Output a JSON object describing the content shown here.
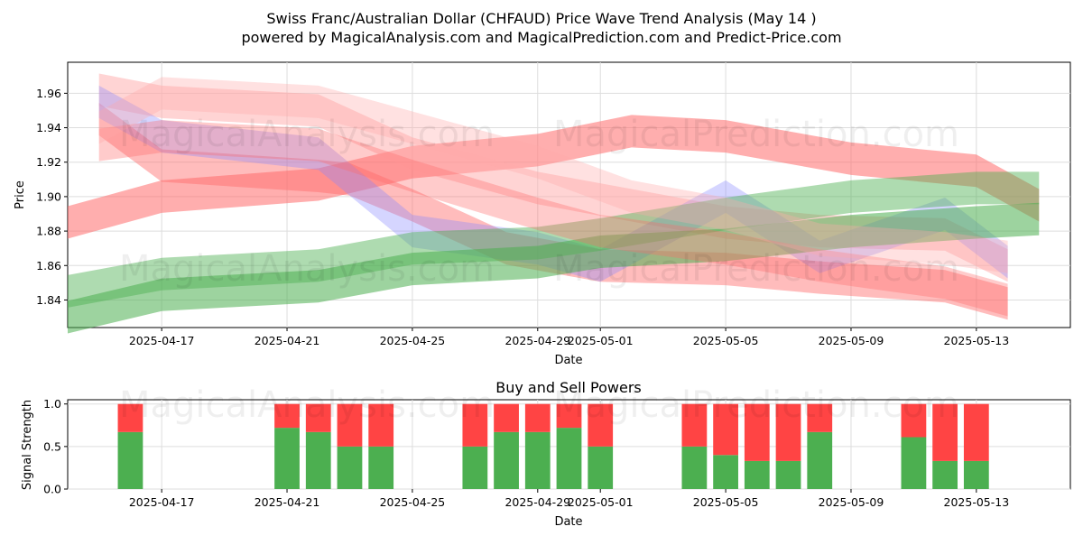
{
  "title_line1": "Swiss Franc/Australian Dollar (CHFAUD) Price Wave Trend Analysis (May 14 )",
  "title_line2": "powered by MagicalAnalysis.com and MagicalPrediction.com and Predict-Price.com",
  "watermarks": [
    "MagicalAnalysis.com",
    "MagicalPrediction.com"
  ],
  "colors": {
    "red": "#ff6b6b",
    "green": "#4caf50",
    "blue": "#8888ff",
    "pink": "#ffaaaa"
  },
  "chart_data": [
    {
      "type": "area",
      "xlabel": "Date",
      "ylabel": "Price",
      "ylim": [
        1.824,
        1.978
      ],
      "yticks": [
        1.84,
        1.86,
        1.88,
        1.9,
        1.92,
        1.94,
        1.96
      ],
      "ytick_labels": [
        "1.84",
        "1.86",
        "1.88",
        "1.90",
        "1.92",
        "1.94",
        "1.96"
      ],
      "xlim": [
        "2025-04-14",
        "2025-05-16"
      ],
      "xticks": [
        "2025-04-17",
        "2025-04-21",
        "2025-04-25",
        "2025-04-29",
        "2025-05-01",
        "2025-05-05",
        "2025-05-09",
        "2025-05-13"
      ],
      "grid": true,
      "series": [
        {
          "color": "red",
          "opacity": 0.55,
          "x": [
            "2025-04-14",
            "2025-04-17",
            "2025-04-22",
            "2025-04-25",
            "2025-04-29",
            "2025-05-02",
            "2025-05-05",
            "2025-05-09",
            "2025-05-13",
            "2025-05-15"
          ],
          "y": [
            1.885,
            1.9,
            1.907,
            1.92,
            1.927,
            1.938,
            1.935,
            1.922,
            1.915,
            1.895
          ]
        },
        {
          "color": "red",
          "opacity": 0.45,
          "x": [
            "2025-04-15",
            "2025-04-17",
            "2025-04-22",
            "2025-04-23",
            "2025-04-25",
            "2025-04-28",
            "2025-05-01",
            "2025-05-05",
            "2025-05-08",
            "2025-05-12",
            "2025-05-14"
          ],
          "y": [
            1.945,
            1.918,
            1.912,
            1.91,
            1.895,
            1.87,
            1.86,
            1.858,
            1.853,
            1.848,
            1.838
          ]
        },
        {
          "color": "pink",
          "opacity": 0.5,
          "x": [
            "2025-04-15",
            "2025-04-17",
            "2025-04-22",
            "2025-04-25",
            "2025-04-29",
            "2025-05-02",
            "2025-05-05",
            "2025-05-08",
            "2025-05-12",
            "2025-05-14"
          ],
          "y": [
            1.962,
            1.955,
            1.95,
            1.925,
            1.905,
            1.895,
            1.885,
            1.88,
            1.878,
            1.86
          ]
        },
        {
          "color": "blue",
          "opacity": 0.35,
          "x": [
            "2025-04-15",
            "2025-04-17",
            "2025-04-22",
            "2025-04-25",
            "2025-04-29",
            "2025-05-01",
            "2025-05-05",
            "2025-05-08",
            "2025-05-12",
            "2025-05-14"
          ],
          "y": [
            1.955,
            1.935,
            1.925,
            1.88,
            1.87,
            1.86,
            1.9,
            1.865,
            1.89,
            1.862
          ]
        },
        {
          "color": "green",
          "opacity": 0.45,
          "x": [
            "2025-04-14",
            "2025-04-17",
            "2025-04-22",
            "2025-04-25",
            "2025-04-29",
            "2025-05-01",
            "2025-05-05",
            "2025-05-09",
            "2025-05-13",
            "2025-05-15"
          ],
          "y": [
            1.845,
            1.855,
            1.86,
            1.87,
            1.873,
            1.878,
            1.89,
            1.9,
            1.905,
            1.905
          ]
        },
        {
          "color": "green",
          "opacity": 0.55,
          "x": [
            "2025-04-14",
            "2025-04-17",
            "2025-04-22",
            "2025-04-25",
            "2025-04-29",
            "2025-05-01",
            "2025-05-05",
            "2025-05-09",
            "2025-05-13",
            "2025-05-15"
          ],
          "y": [
            1.83,
            1.843,
            1.848,
            1.858,
            1.862,
            1.868,
            1.872,
            1.88,
            1.885,
            1.887
          ]
        },
        {
          "color": "red",
          "opacity": 0.35,
          "x": [
            "2025-04-15",
            "2025-04-17",
            "2025-04-22",
            "2025-04-25",
            "2025-04-29",
            "2025-05-01",
            "2025-05-05",
            "2025-05-08",
            "2025-05-12",
            "2025-05-14"
          ],
          "y": [
            1.93,
            1.935,
            1.93,
            1.912,
            1.89,
            1.88,
            1.87,
            1.86,
            1.85,
            1.84
          ]
        },
        {
          "color": "pink",
          "opacity": 0.35,
          "x": [
            "2025-04-15",
            "2025-04-17",
            "2025-04-22",
            "2025-04-25",
            "2025-04-29",
            "2025-05-02",
            "2025-05-05",
            "2025-05-08",
            "2025-05-12",
            "2025-05-14"
          ],
          "y": [
            1.94,
            1.96,
            1.955,
            1.94,
            1.92,
            1.9,
            1.89,
            1.875,
            1.87,
            1.865
          ]
        }
      ]
    },
    {
      "type": "bar",
      "title": "Buy and Sell Powers",
      "xlabel": "Date",
      "ylabel": "Signal Strength",
      "ylim": [
        0,
        1.05
      ],
      "yticks": [
        0.0,
        0.5,
        1.0
      ],
      "ytick_labels": [
        "0.0",
        "0.5",
        "1.0"
      ],
      "xlim": [
        "2025-04-14",
        "2025-05-16"
      ],
      "xticks": [
        "2025-04-17",
        "2025-04-21",
        "2025-04-25",
        "2025-04-29",
        "2025-05-01",
        "2025-05-05",
        "2025-05-09",
        "2025-05-13"
      ],
      "grid": true,
      "categories": [
        "2025-04-16",
        "2025-04-21",
        "2025-04-22",
        "2025-04-23",
        "2025-04-24",
        "2025-04-27",
        "2025-04-28",
        "2025-04-29",
        "2025-04-30",
        "2025-05-01",
        "2025-05-04",
        "2025-05-05",
        "2025-05-06",
        "2025-05-07",
        "2025-05-08",
        "2025-05-11",
        "2025-05-12",
        "2025-05-13"
      ],
      "series": [
        {
          "color": "green",
          "values": [
            0.67,
            0.72,
            0.67,
            0.5,
            0.5,
            0.5,
            0.67,
            0.67,
            0.72,
            0.5,
            0.5,
            0.4,
            0.33,
            0.33,
            0.67,
            0.61,
            0.33,
            0.33
          ]
        },
        {
          "color": "red",
          "values": [
            0.33,
            0.28,
            0.33,
            0.5,
            0.5,
            0.5,
            0.33,
            0.33,
            0.28,
            0.5,
            0.5,
            0.6,
            0.67,
            0.67,
            0.33,
            0.39,
            0.67,
            0.67
          ]
        }
      ]
    }
  ]
}
